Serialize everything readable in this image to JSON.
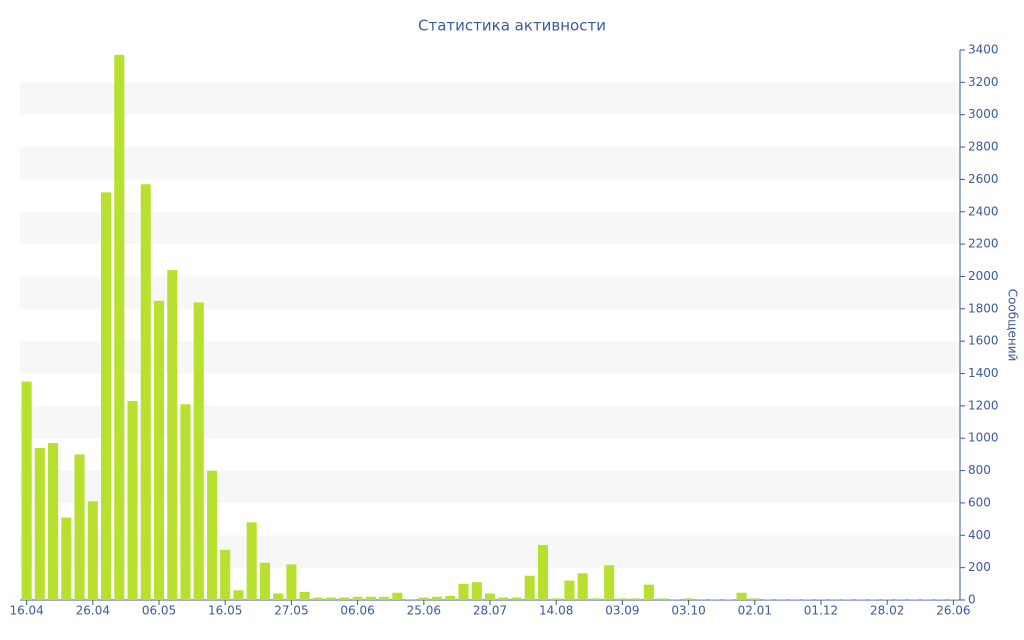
{
  "chart_data": {
    "type": "bar",
    "title": "Статистика активности",
    "y_label": "Сообщений",
    "categories": [
      "16.04",
      null,
      null,
      null,
      null,
      "26.04",
      null,
      null,
      null,
      null,
      "06.05",
      null,
      null,
      null,
      null,
      "16.05",
      null,
      null,
      null,
      null,
      "27.05",
      null,
      null,
      null,
      null,
      "06.06",
      null,
      null,
      null,
      null,
      "25.06",
      null,
      null,
      null,
      null,
      "28.07",
      null,
      null,
      null,
      null,
      "14.08",
      null,
      null,
      null,
      null,
      "03.09",
      null,
      null,
      null,
      null,
      "03.10",
      null,
      null,
      null,
      null,
      "02.01",
      null,
      null,
      null,
      null,
      "01.12",
      null,
      null,
      null,
      null,
      "28.02",
      null,
      null,
      null,
      null,
      "26.06"
    ],
    "values": [
      1350,
      940,
      970,
      510,
      900,
      610,
      2520,
      3370,
      1230,
      2570,
      1850,
      2040,
      1210,
      1840,
      800,
      310,
      60,
      480,
      230,
      40,
      220,
      50,
      15,
      15,
      15,
      20,
      20,
      20,
      45,
      5,
      15,
      20,
      25,
      100,
      110,
      40,
      15,
      15,
      150,
      340,
      10,
      120,
      165,
      10,
      215,
      10,
      10,
      95,
      10,
      5,
      10,
      5,
      5,
      5,
      45,
      10,
      5,
      5,
      5,
      5,
      5,
      5,
      5,
      5,
      5,
      5,
      5,
      5,
      5,
      5,
      5
    ],
    "color": "#b8e02f",
    "ylim": [
      0,
      3400
    ],
    "yticks": [
      0,
      200,
      400,
      600,
      800,
      1000,
      1200,
      1400,
      1600,
      1800,
      2000,
      2200,
      2400,
      2600,
      2800,
      3000,
      3200,
      3400
    ],
    "band_color": "#f7f7f7"
  }
}
